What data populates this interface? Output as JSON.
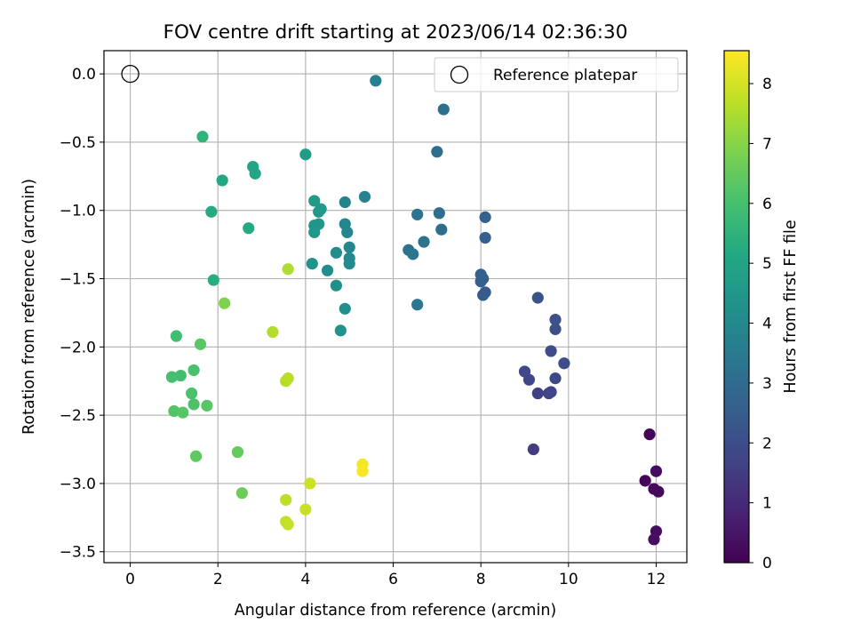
{
  "chart_data": {
    "type": "scatter",
    "title": "FOV centre drift starting at 2023/06/14 02:36:30",
    "xlabel": "Angular distance from reference (arcmin)",
    "ylabel": "Rotation from reference (arcmin)",
    "xlim": [
      -0.6,
      12.7
    ],
    "ylim": [
      -3.58,
      0.17
    ],
    "xticks": [
      0,
      2,
      4,
      6,
      8,
      10,
      12
    ],
    "xtick_labels": [
      "0",
      "2",
      "4",
      "6",
      "8",
      "10",
      "12"
    ],
    "yticks": [
      0.0,
      -0.5,
      -1.0,
      -1.5,
      -2.0,
      -2.5,
      -3.0,
      -3.5
    ],
    "ytick_labels": [
      "0.0",
      "−0.5",
      "−1.0",
      "−1.5",
      "−2.0",
      "−2.5",
      "−3.0",
      "−3.5"
    ],
    "grid": true,
    "legend": {
      "position": "top-right",
      "entries": [
        "Reference platepar"
      ]
    },
    "reference_point": {
      "x": 0,
      "y": 0
    },
    "colorbar": {
      "label": "Hours from first FF file",
      "colormap": "viridis",
      "range": [
        0,
        8.55
      ],
      "ticks": [
        0,
        1,
        2,
        3,
        4,
        5,
        6,
        7,
        8
      ],
      "tick_labels": [
        "0",
        "1",
        "2",
        "3",
        "4",
        "5",
        "6",
        "7",
        "8"
      ]
    },
    "points": [
      {
        "x": 11.85,
        "y": -2.64,
        "c": 0.1
      },
      {
        "x": 11.75,
        "y": -2.98,
        "c": 0.15
      },
      {
        "x": 11.95,
        "y": -3.04,
        "c": 0.18
      },
      {
        "x": 12.05,
        "y": -3.06,
        "c": 0.2
      },
      {
        "x": 12.0,
        "y": -2.91,
        "c": 0.25
      },
      {
        "x": 12.0,
        "y": -3.35,
        "c": 0.3
      },
      {
        "x": 11.95,
        "y": -3.41,
        "c": 0.35
      },
      {
        "x": 9.2,
        "y": -2.75,
        "c": 1.5
      },
      {
        "x": 9.3,
        "y": -2.34,
        "c": 1.6
      },
      {
        "x": 9.55,
        "y": -2.34,
        "c": 1.7
      },
      {
        "x": 9.6,
        "y": -2.33,
        "c": 1.75
      },
      {
        "x": 9.1,
        "y": -2.24,
        "c": 1.8
      },
      {
        "x": 9.0,
        "y": -2.18,
        "c": 1.85
      },
      {
        "x": 9.7,
        "y": -2.23,
        "c": 1.9
      },
      {
        "x": 9.9,
        "y": -2.12,
        "c": 1.95
      },
      {
        "x": 9.6,
        "y": -2.03,
        "c": 2.0
      },
      {
        "x": 9.7,
        "y": -1.87,
        "c": 2.05
      },
      {
        "x": 9.7,
        "y": -1.8,
        "c": 2.1
      },
      {
        "x": 9.3,
        "y": -1.64,
        "c": 2.2
      },
      {
        "x": 8.1,
        "y": -1.6,
        "c": 2.4
      },
      {
        "x": 8.05,
        "y": -1.62,
        "c": 2.45
      },
      {
        "x": 8.0,
        "y": -1.52,
        "c": 2.5
      },
      {
        "x": 8.0,
        "y": -1.47,
        "c": 2.55
      },
      {
        "x": 8.05,
        "y": -1.5,
        "c": 2.6
      },
      {
        "x": 8.1,
        "y": -1.2,
        "c": 2.65
      },
      {
        "x": 8.1,
        "y": -1.05,
        "c": 2.7
      },
      {
        "x": 7.1,
        "y": -1.14,
        "c": 3.0
      },
      {
        "x": 7.05,
        "y": -1.02,
        "c": 3.05
      },
      {
        "x": 7.0,
        "y": -0.57,
        "c": 3.1
      },
      {
        "x": 7.15,
        "y": -0.26,
        "c": 3.15
      },
      {
        "x": 6.55,
        "y": -1.03,
        "c": 3.2
      },
      {
        "x": 6.7,
        "y": -1.23,
        "c": 3.25
      },
      {
        "x": 6.35,
        "y": -1.29,
        "c": 3.3
      },
      {
        "x": 6.45,
        "y": -1.32,
        "c": 3.35
      },
      {
        "x": 6.55,
        "y": -1.69,
        "c": 3.4
      },
      {
        "x": 5.6,
        "y": -0.05,
        "c": 3.7
      },
      {
        "x": 5.35,
        "y": -0.9,
        "c": 3.75
      },
      {
        "x": 4.9,
        "y": -0.94,
        "c": 3.8
      },
      {
        "x": 4.9,
        "y": -1.1,
        "c": 3.85
      },
      {
        "x": 4.95,
        "y": -1.16,
        "c": 3.9
      },
      {
        "x": 5.0,
        "y": -1.27,
        "c": 3.95
      },
      {
        "x": 5.0,
        "y": -1.35,
        "c": 4.0
      },
      {
        "x": 5.0,
        "y": -1.39,
        "c": 4.05
      },
      {
        "x": 4.7,
        "y": -1.31,
        "c": 4.1
      },
      {
        "x": 4.5,
        "y": -1.44,
        "c": 4.15
      },
      {
        "x": 4.7,
        "y": -1.55,
        "c": 4.2
      },
      {
        "x": 4.9,
        "y": -1.72,
        "c": 4.25
      },
      {
        "x": 4.8,
        "y": -1.88,
        "c": 4.3
      },
      {
        "x": 4.15,
        "y": -1.39,
        "c": 4.35
      },
      {
        "x": 4.2,
        "y": -1.11,
        "c": 4.4
      },
      {
        "x": 4.2,
        "y": -1.16,
        "c": 4.45
      },
      {
        "x": 4.3,
        "y": -1.1,
        "c": 4.5
      },
      {
        "x": 4.3,
        "y": -1.01,
        "c": 4.55
      },
      {
        "x": 4.35,
        "y": -0.99,
        "c": 4.6
      },
      {
        "x": 4.2,
        "y": -0.93,
        "c": 4.65
      },
      {
        "x": 4.0,
        "y": -0.59,
        "c": 4.7
      },
      {
        "x": 2.8,
        "y": -0.68,
        "c": 5.0
      },
      {
        "x": 2.85,
        "y": -0.73,
        "c": 5.05
      },
      {
        "x": 2.1,
        "y": -0.78,
        "c": 5.1
      },
      {
        "x": 2.7,
        "y": -1.13,
        "c": 5.15
      },
      {
        "x": 1.85,
        "y": -1.01,
        "c": 5.2
      },
      {
        "x": 1.9,
        "y": -1.51,
        "c": 5.3
      },
      {
        "x": 1.65,
        "y": -0.46,
        "c": 5.5
      },
      {
        "x": 1.05,
        "y": -1.92,
        "c": 5.9
      },
      {
        "x": 1.15,
        "y": -2.21,
        "c": 5.95
      },
      {
        "x": 0.95,
        "y": -2.22,
        "c": 6.0
      },
      {
        "x": 1.45,
        "y": -2.17,
        "c": 6.05
      },
      {
        "x": 1.4,
        "y": -2.34,
        "c": 6.1
      },
      {
        "x": 1.45,
        "y": -2.42,
        "c": 6.15
      },
      {
        "x": 1.0,
        "y": -2.47,
        "c": 6.2
      },
      {
        "x": 1.2,
        "y": -2.48,
        "c": 6.25
      },
      {
        "x": 1.75,
        "y": -2.43,
        "c": 6.3
      },
      {
        "x": 1.6,
        "y": -1.98,
        "c": 6.35
      },
      {
        "x": 1.5,
        "y": -2.8,
        "c": 6.4
      },
      {
        "x": 2.45,
        "y": -2.77,
        "c": 6.5
      },
      {
        "x": 2.55,
        "y": -3.07,
        "c": 6.6
      },
      {
        "x": 2.15,
        "y": -1.68,
        "c": 6.9
      },
      {
        "x": 3.6,
        "y": -1.43,
        "c": 7.5
      },
      {
        "x": 3.25,
        "y": -1.89,
        "c": 7.55
      },
      {
        "x": 3.55,
        "y": -2.25,
        "c": 7.6
      },
      {
        "x": 3.6,
        "y": -2.23,
        "c": 7.65
      },
      {
        "x": 3.55,
        "y": -3.12,
        "c": 7.7
      },
      {
        "x": 3.55,
        "y": -3.28,
        "c": 7.75
      },
      {
        "x": 3.6,
        "y": -3.3,
        "c": 7.8
      },
      {
        "x": 4.0,
        "y": -3.19,
        "c": 7.85
      },
      {
        "x": 4.1,
        "y": -3.0,
        "c": 7.9
      },
      {
        "x": 5.3,
        "y": -2.86,
        "c": 8.4
      },
      {
        "x": 5.3,
        "y": -2.91,
        "c": 8.5
      }
    ]
  }
}
